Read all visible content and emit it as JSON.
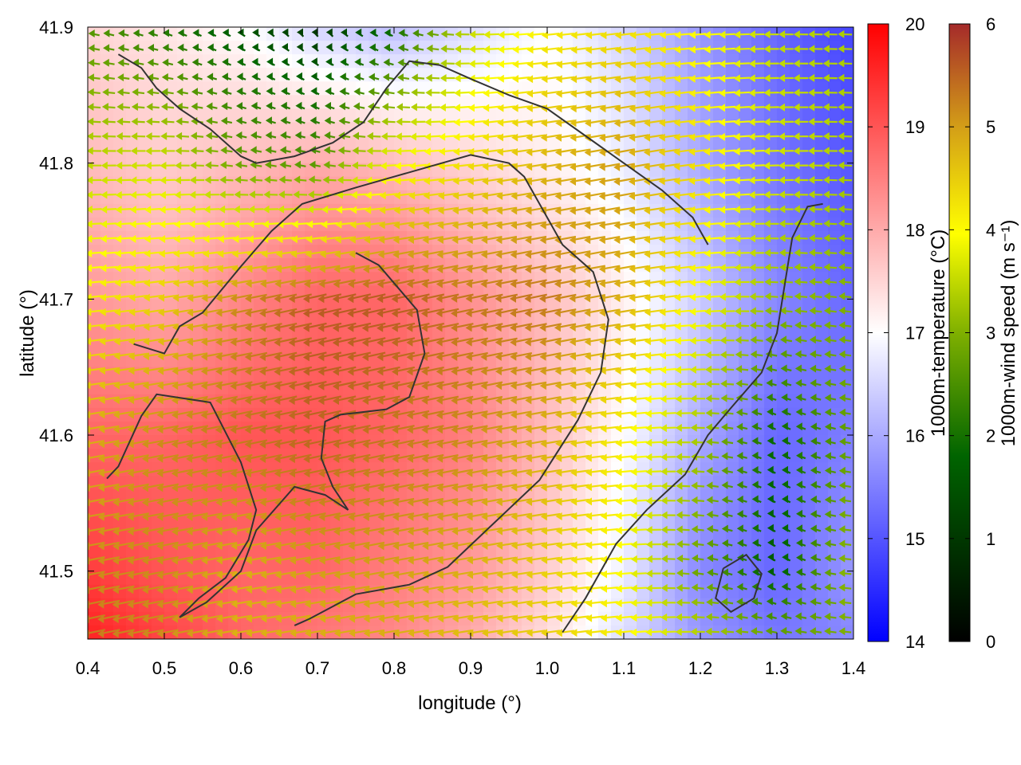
{
  "chart_data": {
    "type": "heatmap",
    "xlabel": "longitude (°)",
    "ylabel": "latitude (°)",
    "xlim": [
      0.4,
      1.4
    ],
    "ylim": [
      41.45,
      41.9
    ],
    "x_ticks": [
      "0.4",
      "0.5",
      "0.6",
      "0.7",
      "0.8",
      "0.9",
      "1.0",
      "1.1",
      "1.2",
      "1.3",
      "1.4"
    ],
    "y_ticks": [
      "41.5",
      "41.6",
      "41.7",
      "41.8",
      "41.9"
    ],
    "grid": false,
    "temperature_colorbar": {
      "label": "1000m-temperature (°C)",
      "range": [
        14,
        20
      ],
      "ticks": [
        "14",
        "15",
        "16",
        "17",
        "18",
        "19",
        "20"
      ],
      "colors": [
        "#0000ff",
        "#ffffff",
        "#ff0000"
      ]
    },
    "wind_colorbar": {
      "label": "1000m-wind speed (m s⁻¹)",
      "range": [
        0,
        6
      ],
      "ticks": [
        "0",
        "1",
        "2",
        "3",
        "4",
        "5",
        "6"
      ],
      "colors": [
        "#000000",
        "#006400",
        "#7fb000",
        "#ffff00",
        "#d4a017",
        "#a52a2a"
      ]
    },
    "temperature_field": {
      "description": "approximate temperature (°C) over lon 0.4–1.4, lat 41.9 (first row) to 41.45 (last row)",
      "lons": [
        0.4,
        0.5,
        0.6,
        0.7,
        0.8,
        0.9,
        1.0,
        1.1,
        1.2,
        1.3,
        1.4
      ],
      "lats": [
        41.9,
        41.8,
        41.7,
        41.6,
        41.5,
        41.45
      ],
      "values": [
        [
          17.5,
          17.3,
          17.0,
          16.5,
          16.2,
          16.6,
          17.0,
          16.5,
          15.8,
          15.2,
          14.8
        ],
        [
          17.8,
          17.6,
          17.8,
          18.0,
          17.8,
          17.5,
          17.2,
          16.8,
          16.0,
          15.4,
          15.0
        ],
        [
          18.2,
          18.0,
          18.4,
          18.8,
          18.8,
          18.3,
          17.8,
          17.2,
          16.4,
          15.6,
          15.2
        ],
        [
          18.8,
          18.8,
          19.0,
          19.0,
          18.8,
          18.5,
          17.8,
          17.0,
          16.0,
          15.2,
          15.5
        ],
        [
          19.3,
          19.0,
          18.8,
          18.8,
          18.5,
          18.2,
          17.6,
          16.8,
          15.6,
          15.2,
          15.8
        ],
        [
          19.6,
          19.2,
          18.8,
          18.6,
          18.4,
          18.0,
          17.4,
          16.6,
          15.8,
          15.4,
          15.6
        ]
      ]
    },
    "wind_speed_field": {
      "description": "approximate wind speed (m s⁻¹), same grid as temperature_field",
      "lons": [
        0.4,
        0.5,
        0.6,
        0.7,
        0.8,
        0.9,
        1.0,
        1.1,
        1.2,
        1.3,
        1.4
      ],
      "lats": [
        41.9,
        41.8,
        41.7,
        41.6,
        41.5,
        41.45
      ],
      "values": [
        [
          2.0,
          1.5,
          1.0,
          0.6,
          1.2,
          3.0,
          3.8,
          4.0,
          3.6,
          3.0,
          2.8
        ],
        [
          3.0,
          3.2,
          2.2,
          2.0,
          3.5,
          4.0,
          4.5,
          4.8,
          4.0,
          3.2,
          2.8
        ],
        [
          3.8,
          4.2,
          5.0,
          5.5,
          5.5,
          5.2,
          5.2,
          4.6,
          3.6,
          2.6,
          2.4
        ],
        [
          4.6,
          5.0,
          5.2,
          5.4,
          5.2,
          5.0,
          4.6,
          3.8,
          2.8,
          1.2,
          2.2
        ],
        [
          5.0,
          5.0,
          4.6,
          4.8,
          4.8,
          4.6,
          4.2,
          3.6,
          2.2,
          1.0,
          2.6
        ],
        [
          5.2,
          5.0,
          4.6,
          4.6,
          4.6,
          4.4,
          4.2,
          3.8,
          3.0,
          2.2,
          2.4
        ]
      ]
    },
    "wind_direction": "easterly (arrows point west)",
    "contours": [
      {
        "points": [
          [
            0.75,
            41.734
          ],
          [
            0.78,
            41.725
          ],
          [
            0.83,
            41.692
          ],
          [
            0.84,
            41.66
          ],
          [
            0.82,
            41.628
          ],
          [
            0.79,
            41.619
          ],
          [
            0.73,
            41.615
          ],
          [
            0.71,
            41.61
          ],
          [
            0.705,
            41.583
          ],
          [
            0.72,
            41.562
          ],
          [
            0.74,
            41.545
          ],
          [
            0.71,
            41.556
          ],
          [
            0.67,
            41.562
          ],
          [
            0.62,
            41.53
          ],
          [
            0.6,
            41.5
          ],
          [
            0.555,
            41.477
          ],
          [
            0.52,
            41.466
          ],
          [
            0.545,
            41.48
          ],
          [
            0.58,
            41.495
          ],
          [
            0.61,
            41.523
          ],
          [
            0.62,
            41.545
          ],
          [
            0.6,
            41.58
          ],
          [
            0.56,
            41.624
          ],
          [
            0.49,
            41.63
          ],
          [
            0.47,
            41.614
          ],
          [
            0.44,
            41.577
          ],
          [
            0.425,
            41.568
          ]
        ]
      },
      {
        "points": [
          [
            0.46,
            41.667
          ],
          [
            0.5,
            41.66
          ],
          [
            0.52,
            41.68
          ],
          [
            0.55,
            41.69
          ],
          [
            0.6,
            41.724
          ],
          [
            0.64,
            41.75
          ],
          [
            0.68,
            41.77
          ],
          [
            0.75,
            41.782
          ],
          [
            0.8,
            41.79
          ],
          [
            0.85,
            41.798
          ],
          [
            0.9,
            41.806
          ],
          [
            0.95,
            41.8
          ],
          [
            0.97,
            41.79
          ],
          [
            1.02,
            41.74
          ],
          [
            1.06,
            41.72
          ],
          [
            1.08,
            41.685
          ],
          [
            1.07,
            41.646
          ],
          [
            1.04,
            41.611
          ],
          [
            0.99,
            41.567
          ],
          [
            0.93,
            41.535
          ],
          [
            0.87,
            41.503
          ],
          [
            0.82,
            41.49
          ],
          [
            0.75,
            41.483
          ],
          [
            0.69,
            41.465
          ],
          [
            0.67,
            41.46
          ]
        ]
      },
      {
        "points": [
          [
            1.02,
            41.455
          ],
          [
            1.05,
            41.48
          ],
          [
            1.09,
            41.52
          ],
          [
            1.13,
            41.545
          ],
          [
            1.18,
            41.571
          ],
          [
            1.21,
            41.6
          ],
          [
            1.24,
            41.62
          ],
          [
            1.28,
            41.646
          ],
          [
            1.3,
            41.675
          ],
          [
            1.31,
            41.71
          ],
          [
            1.32,
            41.745
          ],
          [
            1.34,
            41.768
          ],
          [
            1.36,
            41.77
          ]
        ]
      },
      {
        "points": [
          [
            0.44,
            41.88
          ],
          [
            0.47,
            41.87
          ],
          [
            0.49,
            41.855
          ],
          [
            0.52,
            41.84
          ],
          [
            0.56,
            41.825
          ],
          [
            0.6,
            41.805
          ],
          [
            0.62,
            41.8
          ],
          [
            0.67,
            41.805
          ],
          [
            0.72,
            41.815
          ],
          [
            0.76,
            41.83
          ],
          [
            0.79,
            41.855
          ],
          [
            0.82,
            41.875
          ],
          [
            0.86,
            41.872
          ],
          [
            0.9,
            41.862
          ],
          [
            0.95,
            41.85
          ],
          [
            1.0,
            41.84
          ],
          [
            1.05,
            41.82
          ],
          [
            1.1,
            41.8
          ],
          [
            1.15,
            41.78
          ],
          [
            1.19,
            41.76
          ],
          [
            1.21,
            41.74
          ]
        ]
      },
      {
        "points": [
          [
            1.23,
            41.502
          ],
          [
            1.26,
            41.512
          ],
          [
            1.28,
            41.498
          ],
          [
            1.27,
            41.48
          ],
          [
            1.24,
            41.47
          ],
          [
            1.22,
            41.48
          ],
          [
            1.23,
            41.502
          ]
        ]
      }
    ]
  }
}
